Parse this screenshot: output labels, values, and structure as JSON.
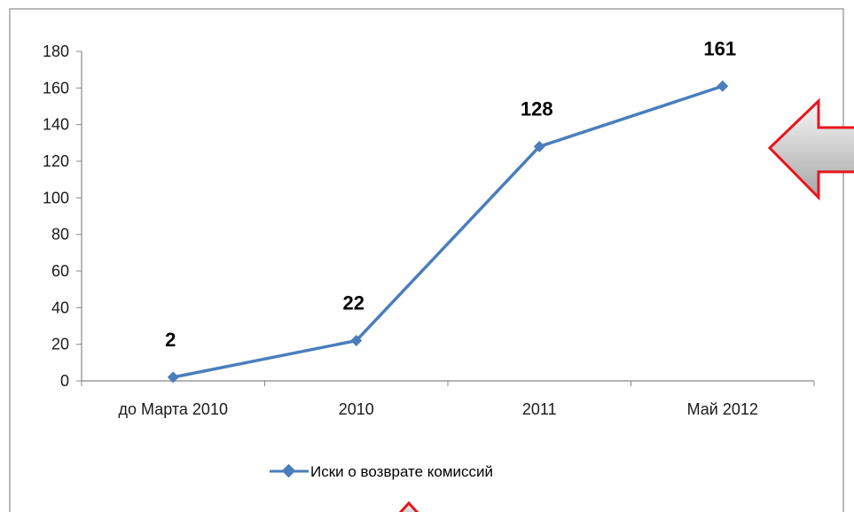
{
  "chart_data": {
    "type": "line",
    "categories": [
      "до Марта 2010",
      "2010",
      "2011",
      "Май 2012"
    ],
    "series": [
      {
        "name": "Иски о возврате комиссий",
        "values": [
          2,
          22,
          128,
          161
        ]
      }
    ],
    "data_labels": [
      "2",
      "22",
      "128",
      "161"
    ],
    "ylim": [
      0,
      180
    ],
    "y_ticks": [
      "0",
      "20",
      "40",
      "60",
      "80",
      "100",
      "120",
      "140",
      "160",
      "180"
    ],
    "grid": false,
    "legend_position": "bottom",
    "title": "",
    "xlabel": "",
    "ylabel": ""
  },
  "colors": {
    "series": "#4a7ebb",
    "axis": "#888888",
    "frame": "#888888",
    "arrow_stroke": "#e8141c",
    "arrow_fill_light": "#f4f4f4",
    "arrow_fill_dark": "#a9a9a9"
  },
  "decorations": {
    "right_arrow_icon": "left-pointing red-outlined arrow",
    "bottom_arrow_icon": "up-pointing red-outlined arrow"
  }
}
